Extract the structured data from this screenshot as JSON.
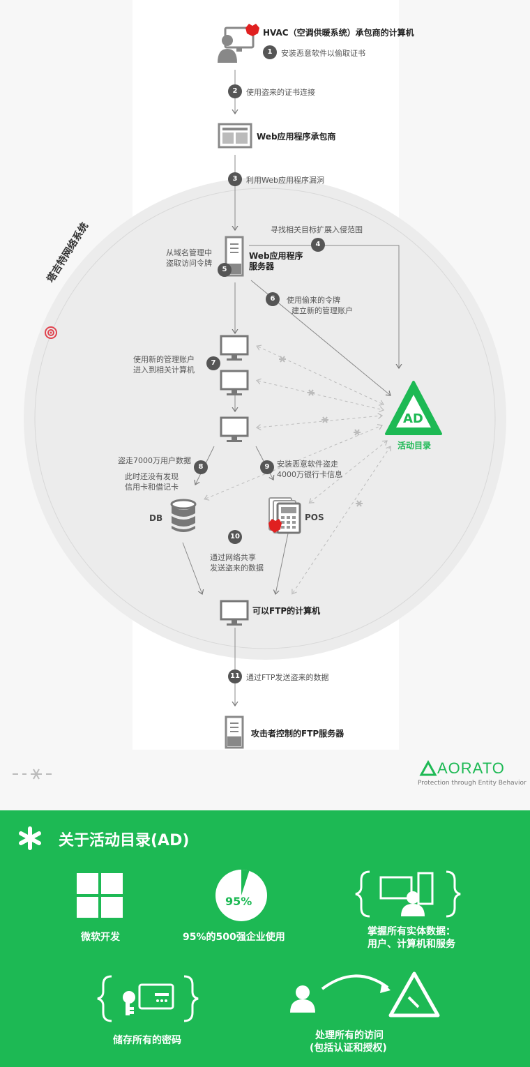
{
  "network_title": "塔吉特网络系统",
  "nodes": {
    "hvac": "HVAC（空调供暖系统）承包商的计算机",
    "web_vendor": "Web应用程序承包商",
    "web_server_line1": "Web应用程序",
    "web_server_line2": "服务器",
    "ad": "AD",
    "ad_label": "活动目录",
    "db": "DB",
    "pos": "POS",
    "ftp_pc": "可以FTP的计算机",
    "ftp_server": "攻击者控制的FTP服务器"
  },
  "steps": [
    {
      "n": "1",
      "text": "安装恶意软件以偷取证书"
    },
    {
      "n": "2",
      "text": "使用盗来的证书连接"
    },
    {
      "n": "3",
      "text": "利用Web应用程序漏洞"
    },
    {
      "n": "4",
      "text": "寻找相关目标扩展入侵范围"
    },
    {
      "n": "5",
      "line1": "从域名管理中",
      "line2": "盗取访问令牌"
    },
    {
      "n": "6",
      "line1": "使用偷来的令牌",
      "line2": "建立新的管理账户"
    },
    {
      "n": "7",
      "line1": "使用新的管理账户",
      "line2": "进入到相关计算机"
    },
    {
      "n": "8",
      "line1": "盗走7000万用户数据",
      "line2": "此时还没有发现",
      "line3": "信用卡和借记卡"
    },
    {
      "n": "9",
      "line1": "安装恶意软件盗走",
      "line2": "4000万银行卡信息"
    },
    {
      "n": "10",
      "line1": "通过网络共享",
      "line2": "发送盗来的数据"
    },
    {
      "n": "11",
      "text": "通过FTP发送盗来的数据"
    }
  ],
  "brand": {
    "name": "AORATO",
    "tagline": "Protection through Entity Behavior"
  },
  "about": {
    "title": "关于活动目录(AD)",
    "pie_percent": 95,
    "pie_label": "95%",
    "items": [
      "微软开发",
      "95%的500强企业使用",
      "掌握所有实体数据：",
      "用户、计算机和服务",
      "储存所有的密码",
      "处理所有的访问",
      "(包括认证和授权)"
    ]
  },
  "colors": {
    "green": "#1db954",
    "circle": "#ececec",
    "red": "#e02020",
    "target": "#e0434e"
  }
}
